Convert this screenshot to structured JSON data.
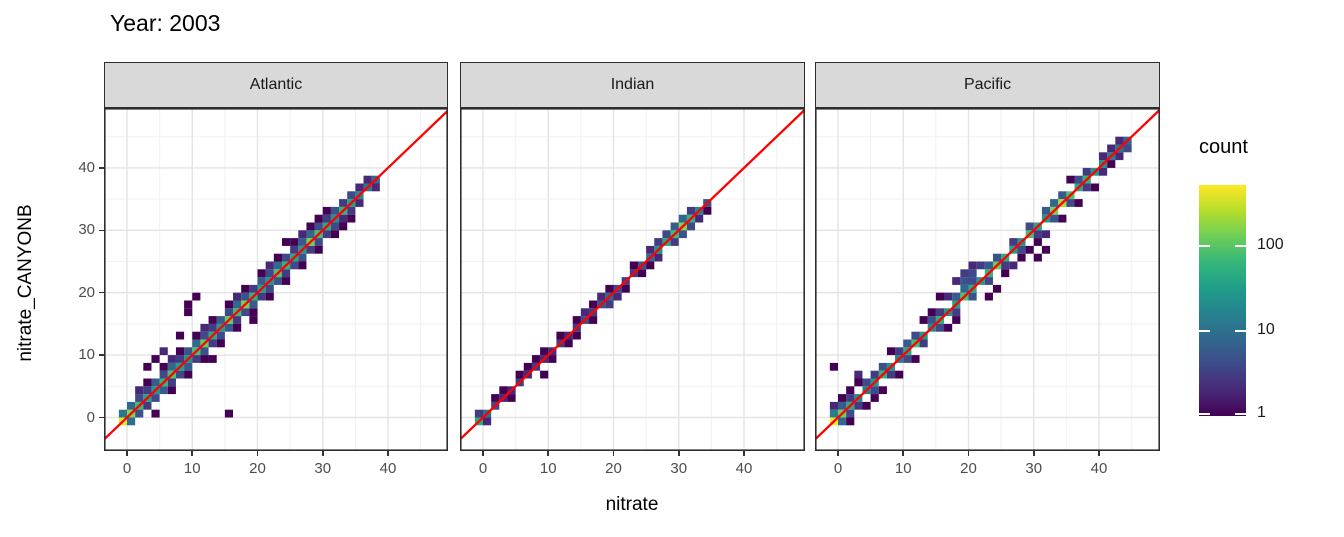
{
  "title": "Year: 2003",
  "colors": {
    "viridis": [
      "#440154",
      "#482878",
      "#3e4a89",
      "#31688e",
      "#26828e",
      "#1f9e89",
      "#35b779",
      "#6ece58",
      "#b5de2b",
      "#fde725"
    ],
    "identity_line": "#ff0000",
    "strip_bg": "#d9d9d9",
    "strip_border": "#2e2e2e",
    "panel_border": "#2e2e2e",
    "panel_bg": "#ffffff",
    "grid_major": "#e4e4e4",
    "grid_minor": "#f2f2f2",
    "axis_text": "#4d4d4d",
    "tick_mark": "#333333"
  },
  "chart_data": {
    "type": "heatmap",
    "subtype": "bin2d-faceted-scatter",
    "title": "Year: 2003",
    "xlabel": "nitrate",
    "ylabel": "nitrate_CANYONB",
    "x_ticks": [
      0,
      10,
      20,
      30,
      40
    ],
    "y_ticks": [
      0,
      10,
      20,
      30,
      40
    ],
    "x_minor": [
      5,
      15,
      25,
      35,
      45
    ],
    "y_minor": [
      5,
      15,
      25,
      35,
      45
    ],
    "x_domain": [
      -3.5,
      49.2
    ],
    "y_domain": [
      -5.4,
      49.6
    ],
    "binwidth": 1.25,
    "grid": true,
    "identity_line": {
      "slope": 1,
      "intercept": 0
    },
    "legend": {
      "title": "count",
      "scale": "log10",
      "ticks": [
        100,
        10,
        1
      ],
      "max_count": 520,
      "position": "right"
    },
    "facets": [
      {
        "label": "Atlantic",
        "diag": [
          420,
          160,
          70,
          40,
          25,
          60,
          90,
          35,
          25,
          80,
          120,
          45,
          30,
          120,
          70,
          150,
          55,
          35,
          25,
          90,
          60,
          40,
          30,
          140,
          80,
          45,
          25,
          60,
          35,
          20,
          12,
          8
        ],
        "off": [
          [
            0,
            1,
            12
          ],
          [
            1,
            2,
            8
          ],
          [
            2,
            3,
            4
          ],
          [
            3,
            4,
            3
          ],
          [
            4,
            5,
            6
          ],
          [
            5,
            6,
            4
          ],
          [
            6,
            7,
            8
          ],
          [
            7,
            8,
            3
          ],
          [
            8,
            9,
            5
          ],
          [
            9,
            10,
            8
          ],
          [
            10,
            11,
            4
          ],
          [
            11,
            12,
            3
          ],
          [
            12,
            13,
            6
          ],
          [
            13,
            14,
            4
          ],
          [
            14,
            15,
            8
          ],
          [
            15,
            16,
            5
          ],
          [
            16,
            17,
            3
          ],
          [
            17,
            18,
            6
          ],
          [
            18,
            19,
            4
          ],
          [
            19,
            20,
            8
          ],
          [
            20,
            21,
            4
          ],
          [
            21,
            22,
            3
          ],
          [
            22,
            23,
            6
          ],
          [
            23,
            24,
            8
          ],
          [
            24,
            25,
            4
          ],
          [
            25,
            26,
            3
          ],
          [
            26,
            27,
            5
          ],
          [
            27,
            28,
            3
          ],
          [
            28,
            29,
            4
          ],
          [
            29,
            30,
            2
          ],
          [
            30,
            31,
            2
          ],
          [
            1,
            0,
            10
          ],
          [
            2,
            1,
            5
          ],
          [
            3,
            2,
            3
          ],
          [
            4,
            3,
            4
          ],
          [
            5,
            4,
            6
          ],
          [
            6,
            5,
            3
          ],
          [
            7,
            6,
            4
          ],
          [
            8,
            7,
            6
          ],
          [
            9,
            8,
            3
          ],
          [
            10,
            9,
            5
          ],
          [
            11,
            10,
            3
          ],
          [
            12,
            11,
            4
          ],
          [
            13,
            12,
            6
          ],
          [
            14,
            13,
            3
          ],
          [
            15,
            14,
            4
          ],
          [
            16,
            15,
            6
          ],
          [
            17,
            16,
            3
          ],
          [
            18,
            17,
            4
          ],
          [
            19,
            18,
            5
          ],
          [
            20,
            19,
            3
          ],
          [
            21,
            20,
            4
          ],
          [
            22,
            21,
            5
          ],
          [
            23,
            22,
            3
          ],
          [
            24,
            23,
            4
          ],
          [
            25,
            24,
            3
          ],
          [
            26,
            25,
            4
          ],
          [
            27,
            26,
            2
          ],
          [
            28,
            27,
            3
          ],
          [
            29,
            28,
            2
          ],
          [
            31,
            30,
            2
          ],
          [
            3,
            5,
            1
          ],
          [
            5,
            7,
            1
          ],
          [
            6,
            4,
            1
          ],
          [
            7,
            9,
            1
          ],
          [
            8,
            6,
            1
          ],
          [
            9,
            11,
            1
          ],
          [
            10,
            8,
            1
          ],
          [
            11,
            13,
            1
          ],
          [
            12,
            10,
            1
          ],
          [
            13,
            15,
            1
          ],
          [
            14,
            12,
            1
          ],
          [
            15,
            17,
            1
          ],
          [
            16,
            14,
            1
          ],
          [
            17,
            19,
            1
          ],
          [
            18,
            16,
            1
          ],
          [
            19,
            21,
            1
          ],
          [
            20,
            18,
            1
          ],
          [
            21,
            23,
            1
          ],
          [
            22,
            20,
            1
          ],
          [
            23,
            25,
            1
          ],
          [
            24,
            22,
            1
          ],
          [
            25,
            27,
            1
          ],
          [
            26,
            24,
            1
          ],
          [
            6,
            8,
            2
          ],
          [
            10,
            12,
            2
          ],
          [
            14,
            16,
            2
          ],
          [
            18,
            20,
            2
          ],
          [
            22,
            24,
            2
          ],
          [
            2,
            4,
            2
          ],
          [
            4,
            1,
            1
          ],
          [
            7,
            11,
            1
          ],
          [
            11,
            8,
            1
          ],
          [
            24,
            26,
            1
          ],
          [
            27,
            25,
            1
          ],
          [
            13,
            1,
            1
          ],
          [
            8,
            14,
            1
          ],
          [
            8,
            15,
            1
          ],
          [
            9,
            16,
            1
          ],
          [
            4,
            8,
            1
          ],
          [
            5,
            9,
            2
          ],
          [
            3,
            7,
            1
          ],
          [
            16,
            13,
            1
          ],
          [
            20,
            23,
            1
          ],
          [
            28,
            26,
            1
          ]
        ]
      },
      {
        "label": "Indian",
        "diag": [
          45,
          10,
          4,
          2,
          2,
          3,
          2,
          3,
          2,
          2,
          3,
          2,
          3,
          4,
          3,
          5,
          8,
          4,
          3,
          3,
          5,
          10,
          25,
          45,
          70,
          160,
          60,
          18,
          5
        ],
        "off": [
          [
            0,
            1,
            3
          ],
          [
            1,
            0,
            2
          ],
          [
            2,
            3,
            1
          ],
          [
            3,
            4,
            1
          ],
          [
            4,
            3,
            1
          ],
          [
            5,
            6,
            1
          ],
          [
            6,
            7,
            1
          ],
          [
            7,
            8,
            1
          ],
          [
            8,
            6,
            1
          ],
          [
            8,
            9,
            1
          ],
          [
            9,
            8,
            1
          ],
          [
            10,
            11,
            1
          ],
          [
            11,
            10,
            1
          ],
          [
            12,
            11,
            1
          ],
          [
            12,
            13,
            1
          ],
          [
            13,
            14,
            2
          ],
          [
            14,
            13,
            1
          ],
          [
            14,
            15,
            1
          ],
          [
            15,
            16,
            2
          ],
          [
            16,
            15,
            3
          ],
          [
            16,
            17,
            1
          ],
          [
            17,
            16,
            2
          ],
          [
            18,
            17,
            1
          ],
          [
            19,
            20,
            1
          ],
          [
            20,
            19,
            1
          ],
          [
            21,
            20,
            1
          ],
          [
            21,
            22,
            2
          ],
          [
            22,
            21,
            2
          ],
          [
            22,
            23,
            3
          ],
          [
            23,
            24,
            4
          ],
          [
            24,
            23,
            3
          ],
          [
            24,
            25,
            6
          ],
          [
            25,
            24,
            5
          ],
          [
            25,
            26,
            8
          ],
          [
            26,
            25,
            4
          ],
          [
            26,
            27,
            3
          ],
          [
            27,
            26,
            2
          ],
          [
            28,
            27,
            1
          ]
        ]
      },
      {
        "label": "Pacific",
        "diag": [
          520,
          130,
          45,
          20,
          15,
          30,
          60,
          25,
          15,
          40,
          80,
          30,
          20,
          50,
          25,
          35,
          90,
          45,
          30,
          60,
          120,
          50,
          35,
          25,
          80,
          40,
          30,
          150,
          230,
          90,
          45,
          60,
          30,
          22,
          15,
          10,
          8
        ],
        "off": [
          [
            0,
            1,
            15
          ],
          [
            1,
            2,
            6
          ],
          [
            2,
            3,
            3
          ],
          [
            4,
            5,
            4
          ],
          [
            5,
            6,
            3
          ],
          [
            6,
            7,
            5
          ],
          [
            8,
            9,
            3
          ],
          [
            9,
            10,
            6
          ],
          [
            10,
            11,
            4
          ],
          [
            12,
            13,
            5
          ],
          [
            13,
            14,
            3
          ],
          [
            15,
            16,
            6
          ],
          [
            16,
            17,
            8
          ],
          [
            17,
            18,
            4
          ],
          [
            19,
            20,
            6
          ],
          [
            20,
            21,
            5
          ],
          [
            22,
            23,
            3
          ],
          [
            24,
            25,
            4
          ],
          [
            26,
            27,
            6
          ],
          [
            27,
            28,
            8
          ],
          [
            28,
            29,
            6
          ],
          [
            30,
            31,
            4
          ],
          [
            31,
            32,
            3
          ],
          [
            33,
            34,
            2
          ],
          [
            34,
            35,
            2
          ],
          [
            35,
            36,
            2
          ],
          [
            1,
            0,
            8
          ],
          [
            3,
            2,
            3
          ],
          [
            5,
            4,
            4
          ],
          [
            7,
            6,
            3
          ],
          [
            9,
            8,
            4
          ],
          [
            11,
            10,
            3
          ],
          [
            13,
            12,
            4
          ],
          [
            15,
            14,
            3
          ],
          [
            17,
            16,
            5
          ],
          [
            19,
            18,
            4
          ],
          [
            21,
            20,
            3
          ],
          [
            23,
            22,
            4
          ],
          [
            25,
            24,
            3
          ],
          [
            27,
            26,
            5
          ],
          [
            29,
            28,
            4
          ],
          [
            31,
            30,
            3
          ],
          [
            33,
            32,
            2
          ],
          [
            35,
            34,
            2
          ],
          [
            36,
            35,
            4
          ],
          [
            2,
            0,
            1
          ],
          [
            0,
            2,
            2
          ],
          [
            3,
            5,
            1
          ],
          [
            6,
            4,
            1
          ],
          [
            7,
            9,
            1
          ],
          [
            10,
            8,
            1
          ],
          [
            11,
            13,
            1
          ],
          [
            14,
            12,
            1
          ],
          [
            15,
            13,
            1
          ],
          [
            16,
            18,
            5
          ],
          [
            16,
            19,
            3
          ],
          [
            17,
            19,
            4
          ],
          [
            15,
            18,
            2
          ],
          [
            17,
            20,
            2
          ],
          [
            14,
            16,
            2
          ],
          [
            18,
            20,
            3
          ],
          [
            21,
            19,
            1
          ],
          [
            22,
            20,
            2
          ],
          [
            23,
            21,
            1
          ],
          [
            25,
            23,
            1
          ],
          [
            26,
            24,
            2
          ],
          [
            24,
            22,
            1
          ],
          [
            28,
            26,
            1
          ],
          [
            29,
            31,
            1
          ],
          [
            32,
            30,
            1
          ],
          [
            30,
            28,
            1
          ],
          [
            19,
            16,
            1
          ],
          [
            20,
            17,
            1
          ],
          [
            12,
            14,
            1
          ],
          [
            8,
            6,
            1
          ],
          [
            5,
            3,
            1
          ],
          [
            4,
            2,
            1
          ],
          [
            2,
            4,
            1
          ],
          [
            34,
            33,
            1
          ],
          [
            2,
            1,
            4
          ],
          [
            1,
            3,
            1
          ],
          [
            0,
            7,
            1
          ],
          [
            3,
            6,
            2
          ],
          [
            25,
            21,
            1
          ],
          [
            26,
            22,
            1
          ],
          [
            13,
            16,
            1
          ]
        ]
      }
    ]
  }
}
